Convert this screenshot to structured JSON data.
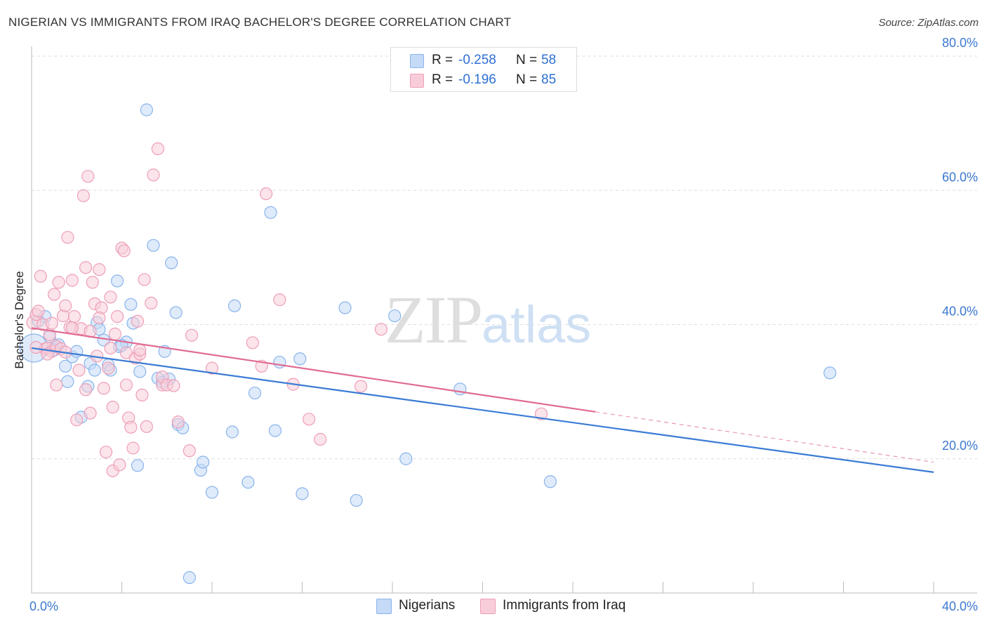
{
  "title": "NIGERIAN VS IMMIGRANTS FROM IRAQ BACHELOR'S DEGREE CORRELATION CHART",
  "source": "Source: ZipAtlas.com",
  "watermark": {
    "zip": "ZIP",
    "atlas": "atlas"
  },
  "legend": {
    "r_label": "R =",
    "n_label": "N =",
    "rows": [
      {
        "name": "Nigerians",
        "r": "-0.258",
        "n": "58",
        "color": "#89b4ec",
        "fill": "#c5daf6"
      },
      {
        "name": "Immigrants from Iraq",
        "r": "-0.196",
        "n": "85",
        "color": "#ee9fb8",
        "fill": "#f8cdd9"
      }
    ]
  },
  "chart_data": {
    "type": "scatter",
    "title": "NIGERIAN VS IMMIGRANTS FROM IRAQ BACHELOR'S DEGREE CORRELATION CHART",
    "xlabel": "",
    "ylabel": "Bachelor's Degree",
    "xlim": [
      0,
      40
    ],
    "ylim": [
      0,
      80
    ],
    "x_ticks": [
      "0.0%",
      "40.0%"
    ],
    "y_ticks": [
      {
        "value": 20,
        "label": "20.0%"
      },
      {
        "value": 40,
        "label": "40.0%"
      },
      {
        "value": 60,
        "label": "60.0%"
      },
      {
        "value": 80,
        "label": "80.0%"
      }
    ],
    "grid": true,
    "legend_position": "top-center",
    "series": [
      {
        "name": "Nigerians",
        "color": "#3a7bd5",
        "marker_fill": "#c5daf6",
        "marker_stroke": "#89b4ec",
        "trend": {
          "x0": 0,
          "y0": 36.5,
          "x1": 40,
          "y1": 18.0,
          "dashed_from": null
        },
        "points": [
          [
            0.1,
            36.5
          ],
          [
            0.6,
            41.2
          ],
          [
            0.8,
            38.2
          ],
          [
            1.1,
            36.6
          ],
          [
            1.2,
            37.0
          ],
          [
            1.5,
            33.8
          ],
          [
            1.6,
            31.5
          ],
          [
            1.8,
            35.2
          ],
          [
            2.0,
            36.0
          ],
          [
            2.2,
            26.2
          ],
          [
            2.5,
            30.8
          ],
          [
            2.6,
            34.2
          ],
          [
            2.8,
            33.2
          ],
          [
            2.9,
            40.3
          ],
          [
            3.0,
            39.3
          ],
          [
            3.2,
            37.7
          ],
          [
            3.4,
            34.0
          ],
          [
            3.5,
            33.2
          ],
          [
            3.8,
            46.5
          ],
          [
            3.9,
            36.7
          ],
          [
            4.2,
            37.4
          ],
          [
            4.4,
            43.0
          ],
          [
            4.5,
            40.2
          ],
          [
            4.8,
            33.0
          ],
          [
            4.7,
            19.0
          ],
          [
            5.1,
            72.0
          ],
          [
            5.4,
            51.8
          ],
          [
            5.6,
            32.0
          ],
          [
            5.8,
            31.4
          ],
          [
            5.9,
            36.0
          ],
          [
            6.1,
            31.9
          ],
          [
            6.2,
            49.2
          ],
          [
            6.4,
            41.8
          ],
          [
            6.5,
            25.1
          ],
          [
            6.7,
            24.6
          ],
          [
            7.0,
            2.3
          ],
          [
            7.5,
            18.3
          ],
          [
            7.6,
            19.5
          ],
          [
            8.0,
            15.0
          ],
          [
            8.9,
            24.0
          ],
          [
            9.0,
            42.8
          ],
          [
            9.6,
            16.5
          ],
          [
            9.9,
            29.8
          ],
          [
            10.6,
            56.7
          ],
          [
            10.8,
            24.2
          ],
          [
            11.0,
            34.4
          ],
          [
            11.9,
            34.9
          ],
          [
            12.0,
            14.8
          ],
          [
            13.9,
            42.5
          ],
          [
            14.4,
            13.8
          ],
          [
            16.1,
            41.3
          ],
          [
            16.6,
            20.0
          ],
          [
            19.0,
            30.4
          ],
          [
            23.0,
            16.6
          ],
          [
            35.4,
            32.8
          ],
          [
            0.3,
            40.5
          ],
          [
            1.0,
            36.2
          ],
          [
            4.0,
            36.9
          ]
        ]
      },
      {
        "name": "Immigrants from Iraq",
        "color": "#e06b93",
        "marker_fill": "#f8cdd9",
        "marker_stroke": "#ee9fb8",
        "trend": {
          "x0": 0,
          "y0": 39.5,
          "x1": 40,
          "y1": 19.5,
          "dashed_from": 25.0
        },
        "points": [
          [
            0.1,
            40.3
          ],
          [
            0.2,
            41.5
          ],
          [
            0.3,
            42.0
          ],
          [
            0.4,
            47.2
          ],
          [
            0.5,
            40.0
          ],
          [
            0.6,
            36.4
          ],
          [
            0.7,
            36.5
          ],
          [
            0.8,
            38.5
          ],
          [
            0.9,
            36.0
          ],
          [
            1.0,
            44.5
          ],
          [
            1.1,
            36.8
          ],
          [
            1.1,
            31.0
          ],
          [
            1.2,
            46.3
          ],
          [
            1.3,
            36.4
          ],
          [
            1.4,
            41.3
          ],
          [
            1.5,
            42.8
          ],
          [
            1.6,
            53.0
          ],
          [
            1.7,
            39.6
          ],
          [
            1.8,
            46.6
          ],
          [
            1.9,
            41.2
          ],
          [
            2.0,
            25.8
          ],
          [
            2.1,
            33.2
          ],
          [
            2.2,
            39.4
          ],
          [
            2.3,
            59.2
          ],
          [
            2.4,
            48.5
          ],
          [
            2.5,
            62.1
          ],
          [
            2.6,
            26.8
          ],
          [
            2.7,
            46.3
          ],
          [
            2.8,
            43.1
          ],
          [
            2.9,
            35.3
          ],
          [
            3.0,
            48.2
          ],
          [
            3.1,
            42.5
          ],
          [
            3.2,
            30.5
          ],
          [
            3.3,
            21.0
          ],
          [
            3.4,
            33.5
          ],
          [
            3.5,
            44.1
          ],
          [
            3.6,
            27.7
          ],
          [
            3.6,
            18.2
          ],
          [
            3.7,
            38.6
          ],
          [
            3.8,
            41.2
          ],
          [
            3.9,
            19.1
          ],
          [
            4.0,
            51.4
          ],
          [
            4.1,
            51.0
          ],
          [
            4.2,
            35.8
          ],
          [
            4.3,
            26.1
          ],
          [
            4.4,
            24.7
          ],
          [
            4.5,
            21.6
          ],
          [
            4.6,
            35.0
          ],
          [
            4.7,
            40.5
          ],
          [
            4.8,
            35.6
          ],
          [
            4.9,
            29.5
          ],
          [
            5.0,
            46.7
          ],
          [
            5.1,
            24.8
          ],
          [
            5.3,
            43.2
          ],
          [
            5.4,
            62.3
          ],
          [
            5.6,
            66.2
          ],
          [
            5.8,
            31.0
          ],
          [
            6.5,
            25.5
          ],
          [
            7.0,
            21.2
          ],
          [
            7.1,
            38.4
          ],
          [
            8.0,
            33.5
          ],
          [
            9.8,
            37.3
          ],
          [
            10.2,
            33.8
          ],
          [
            10.4,
            59.5
          ],
          [
            11.6,
            31.1
          ],
          [
            12.3,
            25.9
          ],
          [
            12.8,
            22.9
          ],
          [
            14.6,
            30.8
          ],
          [
            15.5,
            39.3
          ],
          [
            22.6,
            26.7
          ],
          [
            0.2,
            36.6
          ],
          [
            0.7,
            35.6
          ],
          [
            1.5,
            35.9
          ],
          [
            2.4,
            30.3
          ],
          [
            3.0,
            41.0
          ],
          [
            4.2,
            31.0
          ],
          [
            0.9,
            40.2
          ],
          [
            1.8,
            39.5
          ],
          [
            2.6,
            39.0
          ],
          [
            3.5,
            36.5
          ],
          [
            4.8,
            36.2
          ],
          [
            5.8,
            32.2
          ],
          [
            6.0,
            31.0
          ],
          [
            11.0,
            43.7
          ],
          [
            6.3,
            30.9
          ]
        ]
      }
    ]
  }
}
